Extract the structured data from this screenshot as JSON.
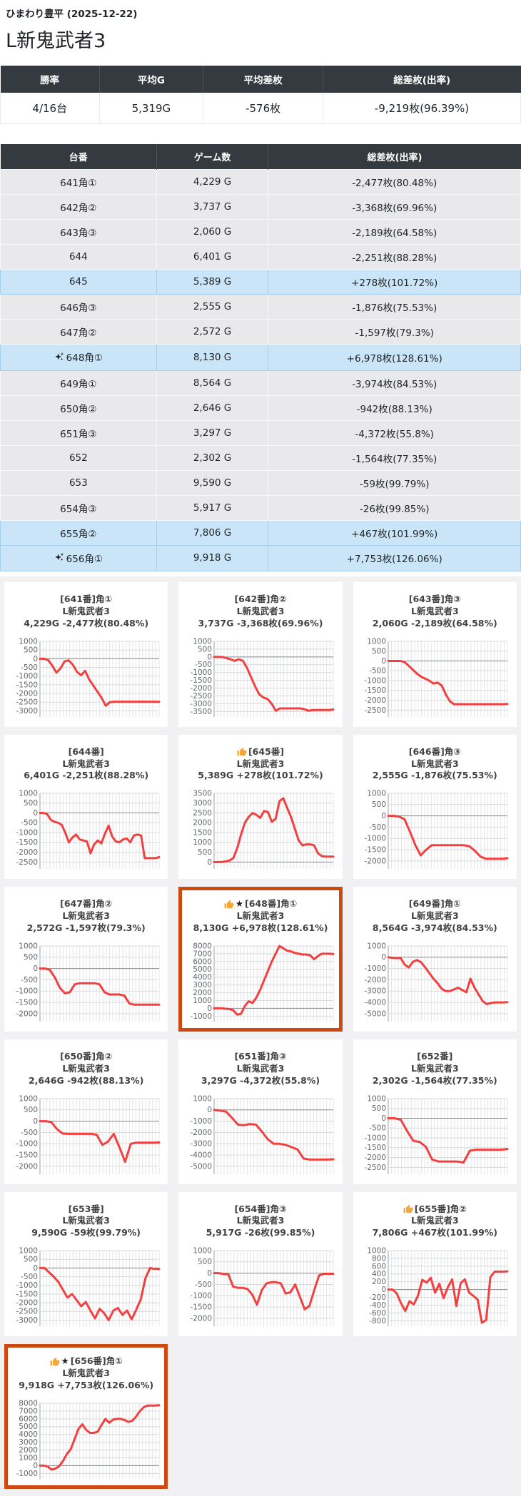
{
  "header": {
    "store_line": "ひまわり豊平 (2025-12-22)",
    "machine_title": "L新鬼武者3"
  },
  "summary_table": {
    "headers": [
      "勝率",
      "平均G",
      "平均差枚",
      "総差枚(出率)"
    ],
    "values": [
      "4/16台",
      "5,319G",
      "-576枚",
      "-9,219枚(96.39%)"
    ]
  },
  "machine_table": {
    "headers": [
      "台番",
      "ゲーム数",
      "総差枚(出率)"
    ],
    "rows": [
      {
        "name": "641角①",
        "games": "4,229 G",
        "diff": "-2,477枚(80.48%)",
        "highlight": false,
        "star": false
      },
      {
        "name": "642角②",
        "games": "3,737 G",
        "diff": "-3,368枚(69.96%)",
        "highlight": false,
        "star": false
      },
      {
        "name": "643角③",
        "games": "2,060 G",
        "diff": "-2,189枚(64.58%)",
        "highlight": false,
        "star": false
      },
      {
        "name": "644",
        "games": "6,401 G",
        "diff": "-2,251枚(88.28%)",
        "highlight": false,
        "star": false
      },
      {
        "name": "645",
        "games": "5,389 G",
        "diff": "+278枚(101.72%)",
        "highlight": true,
        "star": false
      },
      {
        "name": "646角③",
        "games": "2,555 G",
        "diff": "-1,876枚(75.53%)",
        "highlight": false,
        "star": false
      },
      {
        "name": "647角②",
        "games": "2,572 G",
        "diff": "-1,597枚(79.3%)",
        "highlight": false,
        "star": false
      },
      {
        "name": "648角①",
        "games": "8,130 G",
        "diff": "+6,978枚(128.61%)",
        "highlight": true,
        "star": true
      },
      {
        "name": "649角①",
        "games": "8,564 G",
        "diff": "-3,974枚(84.53%)",
        "highlight": false,
        "star": false
      },
      {
        "name": "650角②",
        "games": "2,646 G",
        "diff": "-942枚(88.13%)",
        "highlight": false,
        "star": false
      },
      {
        "name": "651角③",
        "games": "3,297 G",
        "diff": "-4,372枚(55.8%)",
        "highlight": false,
        "star": false
      },
      {
        "name": "652",
        "games": "2,302 G",
        "diff": "-1,564枚(77.35%)",
        "highlight": false,
        "star": false
      },
      {
        "name": "653",
        "games": "9,590 G",
        "diff": "-59枚(99.79%)",
        "highlight": false,
        "star": false
      },
      {
        "name": "654角③",
        "games": "5,917 G",
        "diff": "-26枚(99.85%)",
        "highlight": false,
        "star": false
      },
      {
        "name": "655角②",
        "games": "7,806 G",
        "diff": "+467枚(101.99%)",
        "highlight": true,
        "star": false
      },
      {
        "name": "656角①",
        "games": "9,918 G",
        "diff": "+7,753枚(126.06%)",
        "highlight": true,
        "star": true
      }
    ]
  },
  "colors": {
    "header_bg": "#343a40",
    "row_gray": "#e9e9eb",
    "row_highlight_blue": "#cbe5f8",
    "line_red": "#f24040",
    "card_highlight_border": "#cc4a12",
    "thumb_yellow": "#f3a738",
    "grid_bg": "#f1f1f3"
  },
  "icons": {
    "star_glyph": "★",
    "sparkle": "auto-awesome",
    "thumb": "thumbs-up"
  },
  "chart_data": [
    {
      "type": "line",
      "machine": "[641番]角①",
      "subtitle": "L新鬼武者3",
      "stats": "4,229G -2,477枚(80.48%)",
      "thumb": false,
      "star": false,
      "highlight": false,
      "y_ticks": [
        1000,
        500,
        0,
        -500,
        -1000,
        -1500,
        -2000,
        -2500,
        -3000
      ],
      "values": [
        0,
        0,
        -80,
        -400,
        -800,
        -550,
        -150,
        -100,
        -350,
        -750,
        -950,
        -700,
        -1200,
        -1550,
        -1900,
        -2250,
        -2700,
        -2500,
        -2470,
        -2470,
        -2470,
        -2470,
        -2470,
        -2470,
        -2470,
        -2470,
        -2470,
        -2470,
        -2470,
        -2477
      ]
    },
    {
      "type": "line",
      "machine": "[642番]角②",
      "subtitle": "L新鬼武者3",
      "stats": "3,737G -3,368枚(69.96%)",
      "thumb": false,
      "star": false,
      "highlight": false,
      "y_ticks": [
        1000,
        500,
        0,
        -500,
        -1000,
        -1500,
        -2000,
        -2500,
        -3000,
        -3500
      ],
      "values": [
        0,
        0,
        0,
        -80,
        -150,
        -250,
        -150,
        -250,
        -700,
        -1300,
        -1900,
        -2400,
        -2600,
        -2700,
        -3000,
        -3450,
        -3300,
        -3300,
        -3300,
        -3300,
        -3300,
        -3300,
        -3350,
        -3450,
        -3400,
        -3400,
        -3400,
        -3400,
        -3400,
        -3368
      ]
    },
    {
      "type": "line",
      "machine": "[643番]角③",
      "subtitle": "L新鬼武者3",
      "stats": "2,060G -2,189枚(64.58%)",
      "thumb": false,
      "star": false,
      "highlight": false,
      "y_ticks": [
        1000,
        500,
        0,
        -500,
        -1000,
        -1500,
        -2000,
        -2500
      ],
      "values": [
        0,
        0,
        0,
        0,
        -60,
        -250,
        -450,
        -650,
        -800,
        -900,
        -1000,
        -1150,
        -1100,
        -1250,
        -1700,
        -2050,
        -2200,
        -2200,
        -2200,
        -2200,
        -2200,
        -2200,
        -2200,
        -2200,
        -2200,
        -2200,
        -2200,
        -2200,
        -2200,
        -2189
      ]
    },
    {
      "type": "line",
      "machine": "[644番]",
      "subtitle": "L新鬼武者3",
      "stats": "6,401G -2,251枚(88.28%)",
      "thumb": false,
      "star": false,
      "highlight": false,
      "y_ticks": [
        1000,
        500,
        0,
        -500,
        -1000,
        -1500,
        -2000,
        -2500
      ],
      "values": [
        0,
        0,
        -60,
        -350,
        -450,
        -500,
        -600,
        -1000,
        -1500,
        -1250,
        -1100,
        -1350,
        -1400,
        -1450,
        -2050,
        -1600,
        -1400,
        -1550,
        -1050,
        -650,
        -1200,
        -1450,
        -1500,
        -1350,
        -1300,
        -1500,
        -1150,
        -1100,
        -1150,
        -2300,
        -2300,
        -2300,
        -2300,
        -2251
      ]
    },
    {
      "type": "line",
      "machine": "[645番]",
      "subtitle": "L新鬼武者3",
      "stats": "5,389G +278枚(101.72%)",
      "thumb": true,
      "star": false,
      "highlight": false,
      "y_ticks": [
        3500,
        3000,
        2500,
        2000,
        1500,
        1000,
        500,
        0
      ],
      "values": [
        0,
        0,
        0,
        30,
        80,
        200,
        700,
        1400,
        2000,
        2300,
        2500,
        2400,
        2250,
        2600,
        2550,
        2050,
        2200,
        3100,
        3250,
        2750,
        2300,
        1700,
        1100,
        850,
        900,
        900,
        850,
        450,
        300,
        278,
        278,
        278
      ]
    },
    {
      "type": "line",
      "machine": "[646番]角③",
      "subtitle": "L新鬼武者3",
      "stats": "2,555G -1,876枚(75.53%)",
      "thumb": false,
      "star": false,
      "highlight": false,
      "y_ticks": [
        1000,
        500,
        0,
        -500,
        -1000,
        -1500,
        -2000
      ],
      "values": [
        0,
        0,
        -30,
        -150,
        -700,
        -1300,
        -1750,
        -1500,
        -1300,
        -1300,
        -1300,
        -1300,
        -1300,
        -1300,
        -1300,
        -1350,
        -1550,
        -1800,
        -1900,
        -1900,
        -1900,
        -1900,
        -1876
      ]
    },
    {
      "type": "line",
      "machine": "[647番]角②",
      "subtitle": "L新鬼武者3",
      "stats": "2,572G -1,597枚(79.3%)",
      "thumb": false,
      "star": false,
      "highlight": false,
      "y_ticks": [
        1000,
        500,
        0,
        -500,
        -1000,
        -1500,
        -2000
      ],
      "values": [
        0,
        0,
        -60,
        -400,
        -850,
        -1100,
        -1050,
        -700,
        -650,
        -650,
        -650,
        -650,
        -700,
        -1050,
        -1150,
        -1150,
        -1150,
        -1200,
        -1550,
        -1600,
        -1600,
        -1600,
        -1600,
        -1600,
        -1597
      ]
    },
    {
      "type": "line",
      "machine": "[648番]角①",
      "subtitle": "L新鬼武者3",
      "stats": "8,130G +6,978枚(128.61%)",
      "thumb": true,
      "star": true,
      "highlight": true,
      "y_ticks": [
        8000,
        7000,
        6000,
        5000,
        4000,
        3000,
        2000,
        1000,
        0,
        -1000
      ],
      "values": [
        0,
        0,
        0,
        -50,
        -100,
        -250,
        -800,
        -700,
        300,
        900,
        700,
        1400,
        2400,
        3600,
        4800,
        6000,
        7000,
        8000,
        7700,
        7400,
        7300,
        7100,
        7000,
        6900,
        6900,
        6800,
        6300,
        6700,
        7000,
        7000,
        7000,
        6978
      ]
    },
    {
      "type": "line",
      "machine": "[649番]角①",
      "subtitle": "L新鬼武者3",
      "stats": "8,564G -3,974枚(84.53%)",
      "thumb": false,
      "star": false,
      "highlight": false,
      "y_ticks": [
        1000,
        0,
        -1000,
        -2000,
        -3000,
        -4000,
        -5000
      ],
      "values": [
        0,
        -50,
        -80,
        -60,
        -650,
        -900,
        -400,
        -250,
        -450,
        -900,
        -1400,
        -1900,
        -2300,
        -2800,
        -3000,
        -3000,
        -2850,
        -2700,
        -2900,
        -3100,
        -1900,
        -2700,
        -3300,
        -3900,
        -4150,
        -4050,
        -4000,
        -4000,
        -4000,
        -3974
      ]
    },
    {
      "type": "line",
      "machine": "[650番]角②",
      "subtitle": "L新鬼武者3",
      "stats": "2,646G -942枚(88.13%)",
      "thumb": false,
      "star": false,
      "highlight": false,
      "y_ticks": [
        1000,
        500,
        0,
        -500,
        -1000,
        -1500,
        -2000
      ],
      "values": [
        0,
        0,
        -40,
        -350,
        -550,
        -560,
        -560,
        -560,
        -560,
        -560,
        -600,
        -1050,
        -900,
        -560,
        -1150,
        -1800,
        -1000,
        -950,
        -950,
        -950,
        -950,
        -942
      ]
    },
    {
      "type": "line",
      "machine": "[651番]角③",
      "subtitle": "L新鬼武者3",
      "stats": "3,297G -4,372枚(55.8%)",
      "thumb": false,
      "star": false,
      "highlight": false,
      "y_ticks": [
        1000,
        0,
        -1000,
        -2000,
        -3000,
        -4000,
        -5000
      ],
      "values": [
        0,
        -60,
        -150,
        -700,
        -1300,
        -1350,
        -1250,
        -1300,
        -1900,
        -2600,
        -3000,
        -3000,
        -3100,
        -3300,
        -3500,
        -4300,
        -4400,
        -4400,
        -4400,
        -4400,
        -4372
      ]
    },
    {
      "type": "line",
      "machine": "[652番]",
      "subtitle": "L新鬼武者3",
      "stats": "2,302G -1,564枚(77.35%)",
      "thumb": false,
      "star": false,
      "highlight": false,
      "y_ticks": [
        1000,
        500,
        0,
        -500,
        -1000,
        -1500,
        -2000,
        -2500
      ],
      "values": [
        0,
        0,
        -80,
        -650,
        -1150,
        -1200,
        -1450,
        -2100,
        -2200,
        -2200,
        -2200,
        -2200,
        -2250,
        -1650,
        -1600,
        -1600,
        -1600,
        -1600,
        -1600,
        -1564
      ]
    },
    {
      "type": "line",
      "machine": "[653番]",
      "subtitle": "L新鬼武者3",
      "stats": "9,590G -59枚(99.79%)",
      "thumb": false,
      "star": false,
      "highlight": false,
      "y_ticks": [
        1000,
        500,
        0,
        -500,
        -1000,
        -1500,
        -2000,
        -2500,
        -3000
      ],
      "values": [
        0,
        0,
        -250,
        -500,
        -800,
        -1250,
        -1700,
        -1500,
        -1850,
        -2200,
        -1950,
        -2450,
        -2900,
        -2350,
        -2600,
        -3000,
        -2450,
        -2300,
        -2700,
        -2450,
        -2950,
        -2400,
        -1800,
        -600,
        0,
        -59,
        -59
      ]
    },
    {
      "type": "line",
      "machine": "[654番]角③",
      "subtitle": "L新鬼武者3",
      "stats": "5,917G -26枚(99.85%)",
      "thumb": false,
      "star": false,
      "highlight": false,
      "y_ticks": [
        1000,
        500,
        0,
        -500,
        -1000,
        -1500,
        -2000
      ],
      "values": [
        0,
        0,
        -40,
        -50,
        -600,
        -650,
        -650,
        -700,
        -950,
        -1400,
        -750,
        -450,
        -400,
        -400,
        -450,
        -900,
        -850,
        -500,
        -1050,
        -1600,
        -1450,
        -750,
        -100,
        -26,
        -26,
        -26
      ]
    },
    {
      "type": "line",
      "machine": "[655番]角②",
      "subtitle": "L新鬼武者3",
      "stats": "7,806G +467枚(101.99%)",
      "thumb": true,
      "star": false,
      "highlight": false,
      "y_ticks": [
        1000,
        800,
        600,
        400,
        200,
        0,
        -200,
        -400,
        -600,
        -800
      ],
      "values": [
        0,
        0,
        -100,
        -350,
        -550,
        -300,
        -380,
        -150,
        250,
        180,
        300,
        -80,
        150,
        -220,
        60,
        260,
        -420,
        160,
        260,
        -80,
        -160,
        -260,
        -850,
        -780,
        320,
        460,
        460,
        460,
        467
      ]
    },
    {
      "type": "line",
      "machine": "[656番]角①",
      "subtitle": "L新鬼武者3",
      "stats": "9,918G +7,753枚(126.06%)",
      "thumb": true,
      "star": true,
      "highlight": true,
      "y_ticks": [
        8000,
        7000,
        6000,
        5000,
        4000,
        3000,
        2000,
        1000,
        0,
        -1000
      ],
      "values": [
        0,
        0,
        -120,
        -500,
        -380,
        -80,
        600,
        1500,
        2100,
        3400,
        4700,
        5300,
        4600,
        4200,
        4200,
        4350,
        5200,
        6000,
        5500,
        5900,
        6000,
        6000,
        5850,
        5600,
        5750,
        6300,
        7000,
        7500,
        7700,
        7700,
        7700,
        7753
      ]
    }
  ]
}
